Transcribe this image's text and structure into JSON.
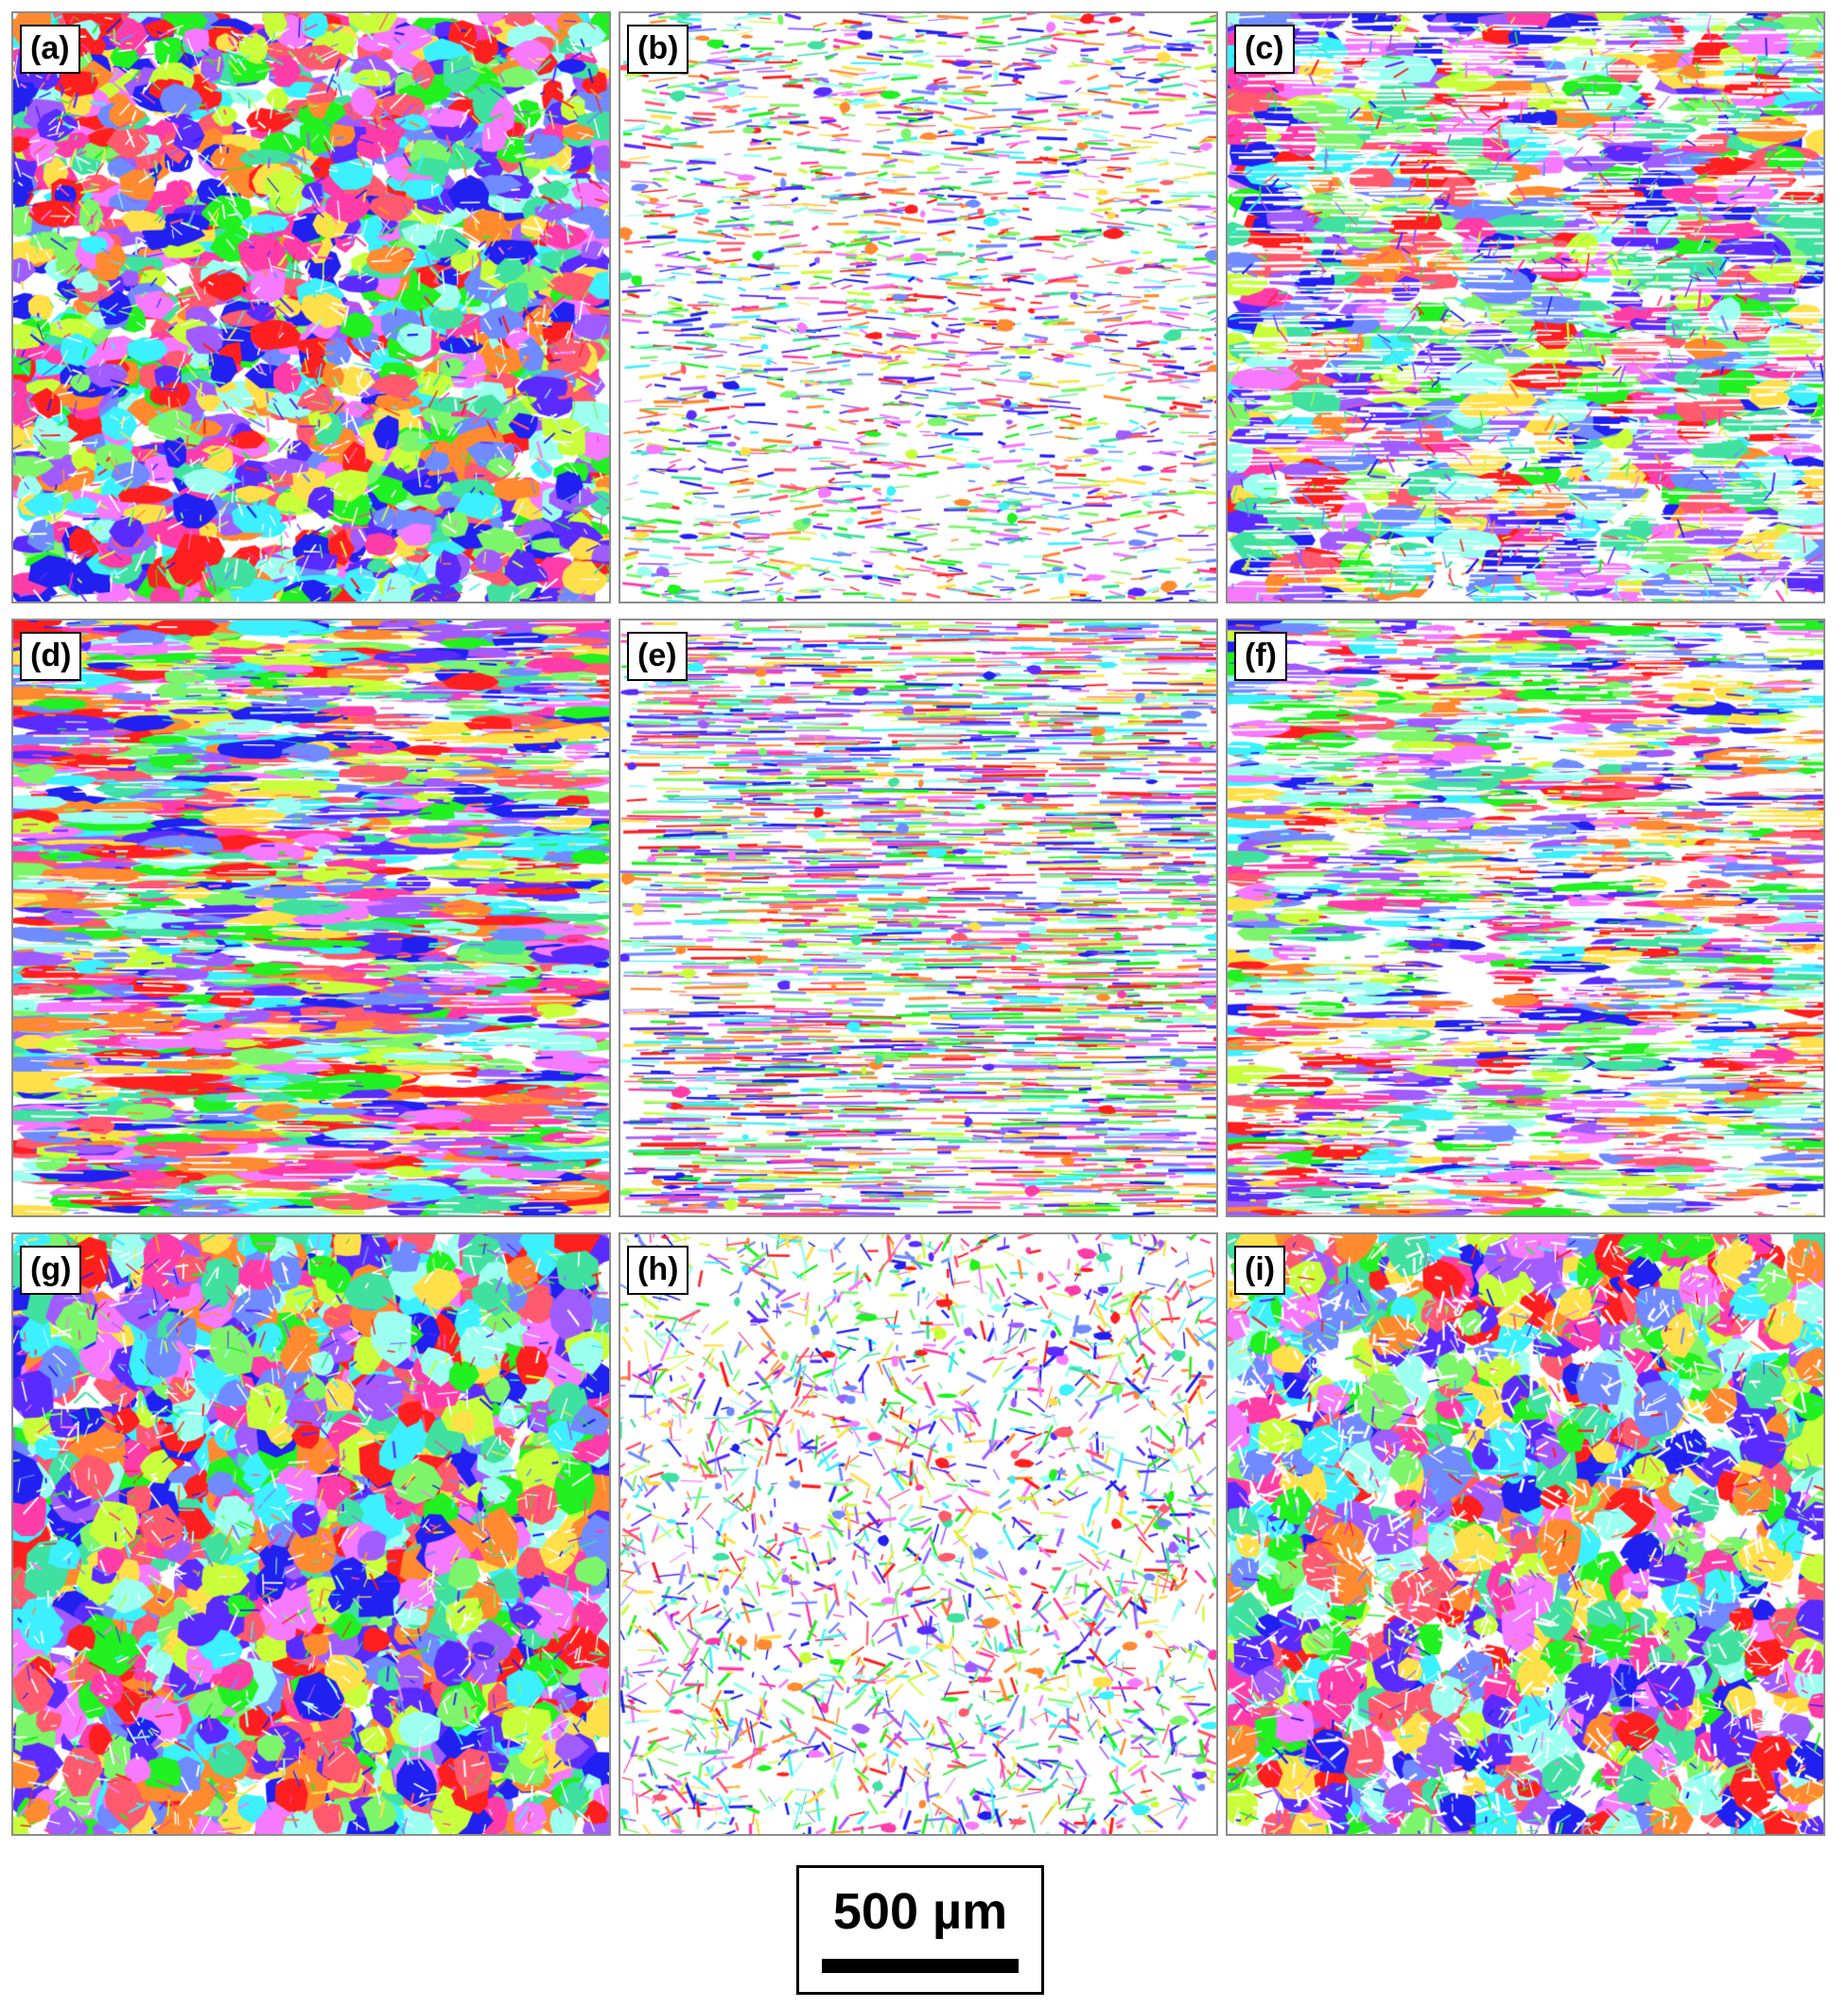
{
  "panels": [
    {
      "id": "a",
      "label": "(a)",
      "style": "dense",
      "morph": "equiaxed"
    },
    {
      "id": "b",
      "label": "(b)",
      "style": "sparse",
      "morph": "equiaxed"
    },
    {
      "id": "c",
      "label": "(c)",
      "style": "grains",
      "morph": "elongated"
    },
    {
      "id": "d",
      "label": "(d)",
      "style": "dense",
      "morph": "banded"
    },
    {
      "id": "e",
      "label": "(e)",
      "style": "sparse-lines",
      "morph": "banded"
    },
    {
      "id": "f",
      "label": "(f)",
      "style": "grains",
      "morph": "banded"
    },
    {
      "id": "g",
      "label": "(g)",
      "style": "dense",
      "morph": "round"
    },
    {
      "id": "h",
      "label": "(h)",
      "style": "sparse",
      "morph": "round"
    },
    {
      "id": "i",
      "label": "(i)",
      "style": "grains",
      "morph": "round"
    }
  ],
  "scale_bar": {
    "label": "500 µm"
  },
  "palette": [
    "#ff1f1f",
    "#2020f0",
    "#21f021",
    "#3cf0ff",
    "#ff3ca8",
    "#a05cff",
    "#ff8a30",
    "#7df56a",
    "#f57aff",
    "#6f8bff",
    "#ffe04a",
    "#40e0a0",
    "#5a2bff",
    "#ff5a6e",
    "#9dfff0",
    "#c8ff3a"
  ]
}
